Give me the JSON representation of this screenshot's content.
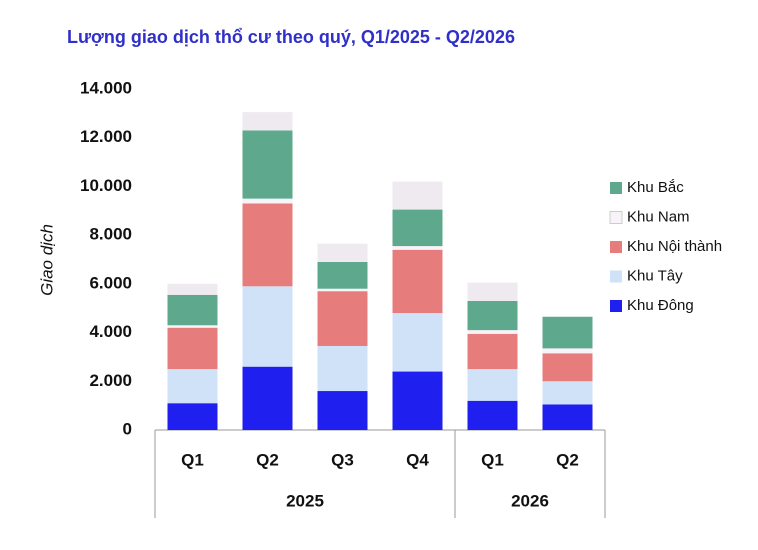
{
  "chart_data": {
    "type": "stacked_bar",
    "title": "Lượng giao dịch thổ cư theo quý, Q1/2025 - Q2/2026",
    "y_label": "Giao dịch",
    "groups": [
      {
        "label": "2025",
        "categories": [
          "Q1",
          "Q2",
          "Q3",
          "Q4"
        ]
      },
      {
        "label": "2026",
        "categories": [
          "Q1",
          "Q2"
        ]
      }
    ],
    "series": [
      {
        "name": "Khu Đông",
        "color": "#1f1ff0",
        "values": [
          1100,
          2600,
          1600,
          2400,
          1200,
          1050
        ]
      },
      {
        "name": "Khu Tây",
        "color": "#cfe2f8",
        "values": [
          1400,
          3300,
          1850,
          2400,
          1300,
          950
        ]
      },
      {
        "name": "Khu Nội thành",
        "color": "#e67c7c",
        "values": [
          1700,
          3400,
          2250,
          2600,
          1450,
          1150
        ]
      },
      {
        "name": "Khu Nam",
        "color": "#f7f3f8",
        "values": [
          100,
          200,
          100,
          150,
          150,
          200
        ]
      },
      {
        "name": "Khu Bắc",
        "color": "#5ea98d",
        "values": [
          1250,
          2800,
          1100,
          1500,
          1200,
          1300
        ]
      },
      {
        "color": "#eeeaf0",
        "values": [
          450,
          750,
          750,
          1150,
          750,
          0
        ]
      }
    ],
    "ylim": [
      0,
      14000
    ],
    "yticks": [
      0,
      {
        "value": 2000,
        "label": "2.000"
      },
      {
        "value": 4000,
        "label": "4.000"
      },
      {
        "value": 6000,
        "label": "6.000"
      },
      {
        "value": 8000,
        "label": "8.000"
      },
      {
        "value": 10000,
        "label": "10.000"
      },
      {
        "value": 12000,
        "label": "12.000"
      },
      {
        "value": 14000,
        "label": "14.000"
      }
    ],
    "legend": "right"
  }
}
